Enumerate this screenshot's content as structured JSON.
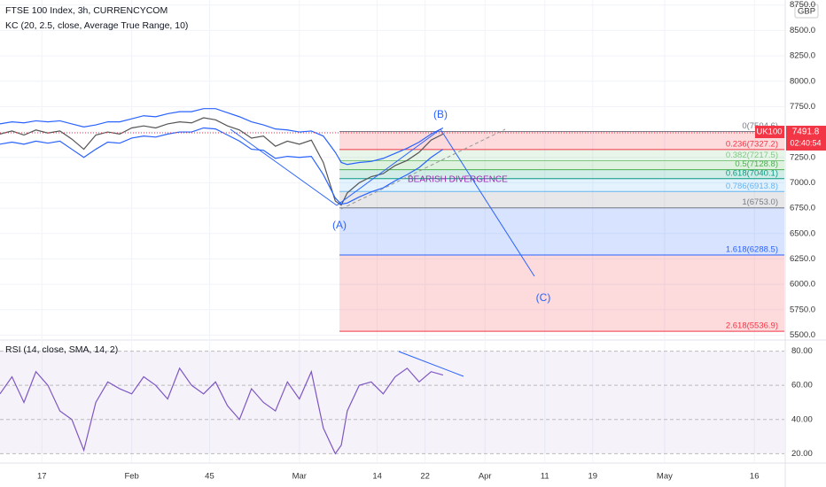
{
  "chart_data": [
    {
      "type": "line",
      "title": "FTSE 100 Index, 3h, CURRENCYCOM",
      "subtitle": "KC (20, 2.5, close, Average True Range, 10)",
      "currency": "GBP",
      "symbol": "UK100",
      "last_price": 7491.8,
      "countdown": "02:40:54",
      "xlim": [
        10,
        141
      ],
      "xticks": [
        17,
        {
          "value": 32,
          "label": "Feb"
        },
        45,
        {
          "value": 60,
          "label": "Mar"
        },
        {
          "value": 73,
          "label": "14"
        },
        {
          "value": 81,
          "label": "22"
        },
        {
          "value": 91,
          "label": "Apr"
        },
        {
          "value": 101,
          "label": "11"
        },
        {
          "value": 109,
          "label": "19"
        },
        {
          "value": 121,
          "label": "May"
        },
        {
          "value": 136,
          "label": "16"
        }
      ],
      "ylim": [
        5460,
        8800
      ],
      "yticks": [
        {
          "value": 5500,
          "label": "5500.0"
        },
        {
          "value": 5750,
          "label": "5750.0"
        },
        {
          "value": 6000,
          "label": "6000.0"
        },
        {
          "value": 6250,
          "label": "6250.0"
        },
        {
          "value": 6500,
          "label": "6500.0"
        },
        {
          "value": 6750,
          "label": "6750.0"
        },
        {
          "value": 7000,
          "label": "7000.0"
        },
        {
          "value": 7250,
          "label": "7250.0"
        },
        {
          "value": 7500,
          "label": "7500.0"
        },
        {
          "value": 7750,
          "label": "7750.0"
        },
        {
          "value": 8000,
          "label": "8000.0"
        },
        {
          "value": 8250,
          "label": "8250.0"
        },
        {
          "value": 8500,
          "label": "8500.0"
        },
        {
          "value": 8750,
          "label": "8750.0"
        }
      ],
      "x": [
        10,
        12,
        14,
        16,
        18,
        20,
        22,
        24,
        26,
        28,
        30,
        32,
        34,
        36,
        38,
        40,
        42,
        44,
        46,
        48,
        50,
        52,
        54,
        56,
        58,
        60,
        62,
        64,
        66,
        67,
        68,
        70,
        72,
        74,
        76,
        78,
        80,
        82,
        84
      ],
      "series": [
        {
          "name": "Price",
          "color": "#555555",
          "values": [
            7480,
            7510,
            7470,
            7520,
            7490,
            7510,
            7430,
            7330,
            7470,
            7500,
            7480,
            7540,
            7560,
            7540,
            7580,
            7600,
            7590,
            7640,
            7620,
            7560,
            7520,
            7440,
            7460,
            7360,
            7410,
            7380,
            7420,
            7200,
            6820,
            6780,
            6900,
            7000,
            7060,
            7090,
            7170,
            7220,
            7300,
            7420,
            7480
          ]
        },
        {
          "name": "Upper",
          "color": "#2962ff",
          "values": [
            7580,
            7600,
            7590,
            7610,
            7600,
            7610,
            7580,
            7550,
            7570,
            7600,
            7600,
            7630,
            7660,
            7650,
            7680,
            7700,
            7700,
            7730,
            7730,
            7690,
            7650,
            7600,
            7570,
            7530,
            7520,
            7500,
            7510,
            7460,
            7300,
            7200,
            7180,
            7200,
            7210,
            7240,
            7290,
            7340,
            7400,
            7480,
            7540
          ]
        },
        {
          "name": "Lower",
          "color": "#2962ff",
          "values": [
            7380,
            7400,
            7380,
            7410,
            7390,
            7410,
            7330,
            7250,
            7330,
            7400,
            7390,
            7440,
            7460,
            7450,
            7480,
            7500,
            7500,
            7540,
            7530,
            7470,
            7410,
            7330,
            7320,
            7240,
            7260,
            7250,
            7260,
            7080,
            6850,
            6790,
            6800,
            6860,
            6910,
            6950,
            7020,
            7080,
            7150,
            7250,
            7330
          ]
        }
      ],
      "fib_start_x": 66.7,
      "fib_levels": [
        {
          "value": 7504.6,
          "label": "0(7504.6)",
          "color": "#787b86"
        },
        {
          "value": 7327.2,
          "label": "0.236(7327.2)",
          "color": "#f23645"
        },
        {
          "value": 7217.5,
          "label": "0.382(7217.5)",
          "color": "#81c784"
        },
        {
          "value": 7128.8,
          "label": "0.5(7128.8)",
          "color": "#4caf50"
        },
        {
          "value": 7040.1,
          "label": "0.618(7040.1)",
          "color": "#089981"
        },
        {
          "value": 6913.8,
          "label": "0.786(6913.8)",
          "color": "#64b5f6"
        },
        {
          "value": 6753.0,
          "label": "1(6753.0)",
          "color": "#787b86"
        },
        {
          "value": 6288.5,
          "label": "1.618(6288.5)",
          "color": "#2962ff"
        },
        {
          "value": 5536.9,
          "label": "2.618(5536.9)",
          "color": "#f23645"
        }
      ],
      "annotations": [
        "(A)",
        "(B)",
        "(C)",
        "BEARISH DIVERGENCE"
      ]
    },
    {
      "type": "line",
      "title": "RSI (14, close, SMA, 14, 2)",
      "ylim": [
        15,
        86
      ],
      "yticks": [
        {
          "value": 20,
          "label": "20.00"
        },
        {
          "value": 40,
          "label": "40.00"
        },
        {
          "value": 60,
          "label": "60.00"
        },
        {
          "value": 80,
          "label": "80.00"
        }
      ],
      "x": [
        10,
        12,
        14,
        16,
        18,
        20,
        22,
        24,
        26,
        28,
        30,
        32,
        34,
        36,
        38,
        40,
        42,
        44,
        46,
        48,
        50,
        52,
        54,
        56,
        58,
        60,
        62,
        64,
        66,
        67,
        68,
        70,
        72,
        74,
        76,
        78,
        80,
        82,
        84
      ],
      "series": [
        {
          "name": "RSI",
          "color": "#7e57c2",
          "values": [
            55,
            65,
            50,
            68,
            60,
            45,
            40,
            22,
            50,
            62,
            58,
            55,
            65,
            60,
            52,
            70,
            60,
            55,
            62,
            48,
            40,
            58,
            50,
            45,
            62,
            52,
            68,
            35,
            20,
            25,
            45,
            60,
            62,
            55,
            65,
            70,
            62,
            68,
            66
          ]
        }
      ]
    }
  ]
}
